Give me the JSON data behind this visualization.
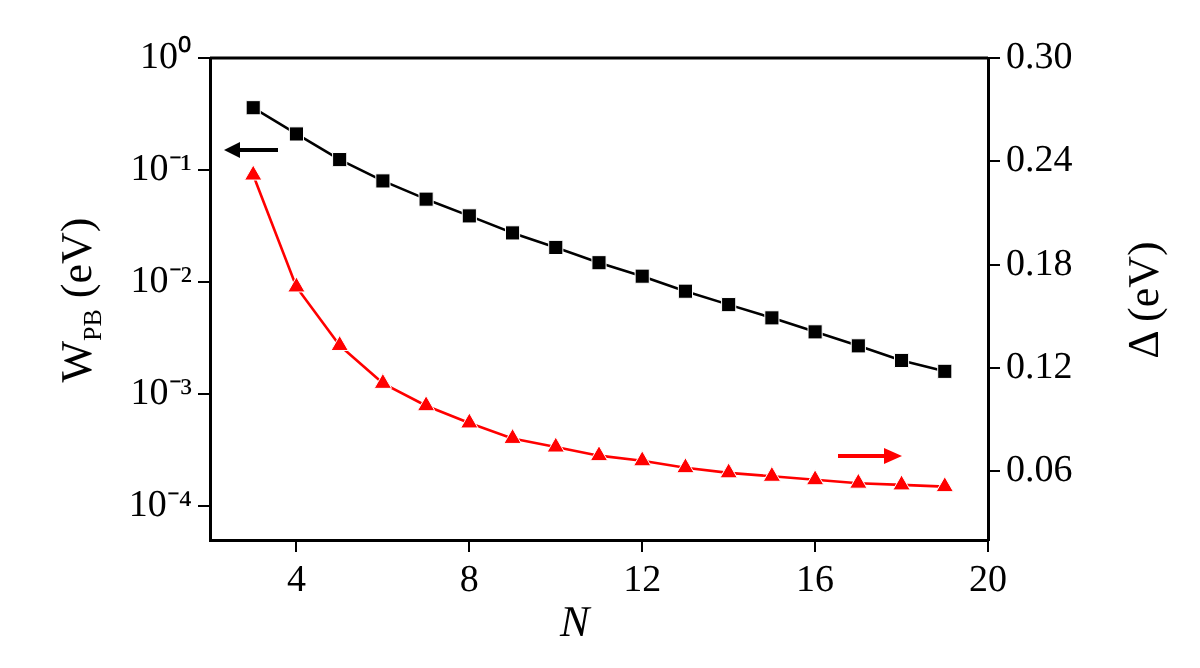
{
  "chart_data": {
    "type": "line",
    "xlabel": "N",
    "ylabel": "W$_{PB}$ (eV)",
    "y2label": "Δ (eV)",
    "x": [
      3,
      4,
      5,
      6,
      7,
      8,
      9,
      10,
      11,
      12,
      13,
      14,
      15,
      16,
      17,
      18,
      19
    ],
    "xlim": [
      2,
      20
    ],
    "xticks": [
      4,
      8,
      12,
      16,
      20
    ],
    "log": "y",
    "ylim": [
      5e-05,
      1
    ],
    "yticks": [
      {
        "value": 0.0001,
        "label": "10⁻⁴"
      },
      {
        "value": 0.001,
        "label": "10⁻³"
      },
      {
        "value": 0.01,
        "label": "10⁻²"
      },
      {
        "value": 0.1,
        "label": "10⁻¹"
      },
      {
        "value": 1,
        "label": "10⁰"
      }
    ],
    "y2lim": [
      0.02,
      0.3
    ],
    "y2ticks": [
      {
        "value": 0.06,
        "label": "0.06"
      },
      {
        "value": 0.12,
        "label": "0.12"
      },
      {
        "value": 0.18,
        "label": "0.18"
      },
      {
        "value": 0.24,
        "label": "0.24"
      },
      {
        "value": 0.3,
        "label": "0.30"
      }
    ],
    "grid": false,
    "legend": false,
    "line_style": "solid",
    "series": [
      {
        "color": "#000000",
        "marker": "square",
        "values": [
          0.36,
          0.21,
          0.124,
          0.08,
          0.055,
          0.039,
          0.0275,
          0.0204,
          0.0149,
          0.0113,
          0.0083,
          0.0063,
          0.0048,
          0.0036,
          0.0027,
          0.002,
          0.0016
        ]
      },
      {
        "color": "#ff0000",
        "marker": "triangle",
        "axis": "y2",
        "values": [
          0.232,
          0.167,
          0.133,
          0.111,
          0.098,
          0.088,
          0.079,
          0.074,
          0.069,
          0.066,
          0.062,
          0.059,
          0.057,
          0.055,
          0.053,
          0.052,
          0.051
        ]
      }
    ]
  }
}
